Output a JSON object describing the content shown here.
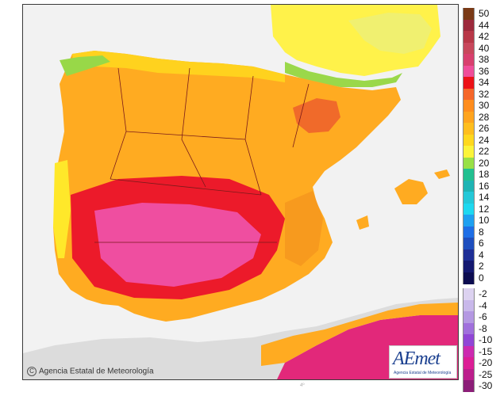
{
  "credit": "Agencia Estatal de Meteorología",
  "credit_symbol": "C",
  "logo": {
    "name": "AEmet",
    "subtitle": "Agencia Estatal de Meteorología"
  },
  "bottom_mark": "4º",
  "legend": {
    "labels": [
      "50",
      "44",
      "42",
      "40",
      "38",
      "36",
      "34",
      "32",
      "30",
      "28",
      "26",
      "24",
      "22",
      "20",
      "18",
      "16",
      "14",
      "12",
      "10",
      "8",
      "6",
      "4",
      "2",
      "0",
      "-2",
      "-4",
      "-6",
      "-8",
      "-10",
      "-15",
      "-20",
      "-25",
      "-30"
    ],
    "colors": [
      "#7a3a16",
      "#9c2a3c",
      "#b83848",
      "#c8485c",
      "#d8406e",
      "#ef4e9a",
      "#ec1218",
      "#f5672a",
      "#ff8d1e",
      "#ffa41e",
      "#ffbe1e",
      "#ffd81e",
      "#fbf43a",
      "#98e046",
      "#22c090",
      "#1eb4b4",
      "#24c8d8",
      "#1ed8f0",
      "#1ea0f0",
      "#1e6ee6",
      "#1e4ebe",
      "#1e2e96",
      "#141870",
      "#0c0c50",
      "#dcd2f0",
      "#c8b8ea",
      "#b498e2",
      "#a070dc",
      "#9046d6",
      "#cc2ab0",
      "#dc1e96",
      "#bc1e8c",
      "#8c1e78"
    ]
  },
  "map_colors": {
    "sea": "#f2f2f2",
    "land_abroad": "#dcdcdc",
    "france": "#fff24a",
    "base": "#ffab21",
    "warm": "#f79a1e",
    "hot": "#f06a2a",
    "very_hot": "#ec1a2a",
    "extreme": "#ef4ea0",
    "cool_coast": "#ffd21e",
    "mild": "#ffe82a",
    "mountain": "#98d848",
    "africa_hot": "#e2287a",
    "borders": "#7a1a1a"
  }
}
